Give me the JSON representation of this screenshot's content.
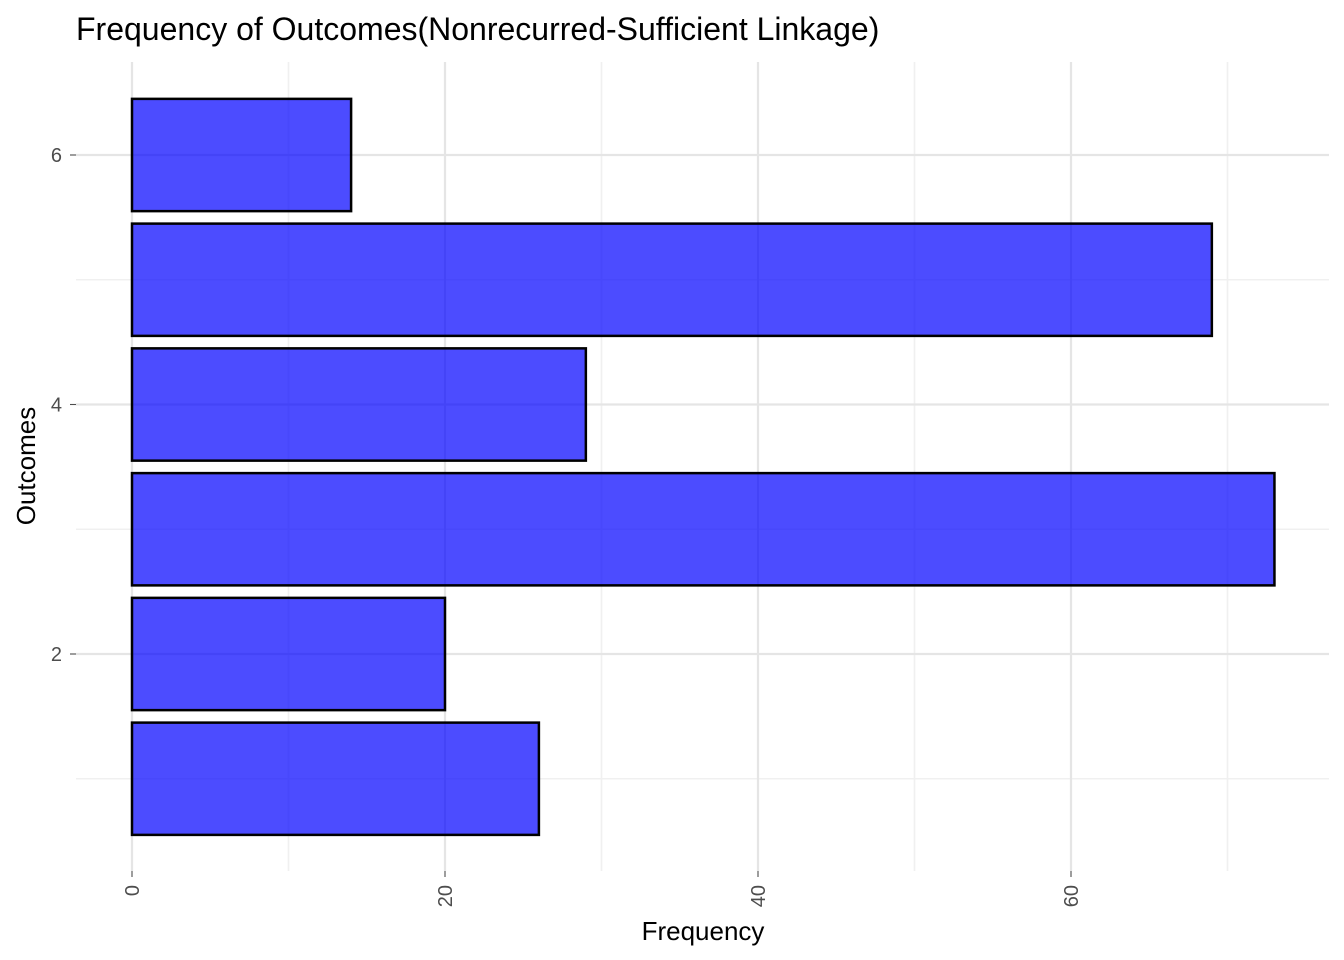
{
  "chart_data": {
    "type": "bar",
    "orientation": "horizontal",
    "title": "Frequency of Outcomes(Nonrecurred-Sufficient Linkage)",
    "xlabel": "Frequency",
    "ylabel": "Outcomes",
    "categories": [
      1,
      2,
      3,
      4,
      5,
      6
    ],
    "values": [
      26,
      20,
      73,
      29,
      69,
      14
    ],
    "xlim": [
      0,
      76
    ],
    "ylim": [
      0.5,
      6.5
    ],
    "x_ticks": [
      0,
      20,
      40,
      60
    ],
    "x_tick_labels": [
      "0",
      "20",
      "40",
      "60"
    ],
    "y_ticks": [
      2,
      4,
      6
    ],
    "y_tick_labels": [
      "2",
      "4",
      "6"
    ],
    "grid": true,
    "x_tick_label_rotation": "vertical",
    "colors": {
      "bar_fill": "#0000ff",
      "bar_stroke": "#000000",
      "grid": "#e5e5e5",
      "background": "#ffffff"
    }
  }
}
